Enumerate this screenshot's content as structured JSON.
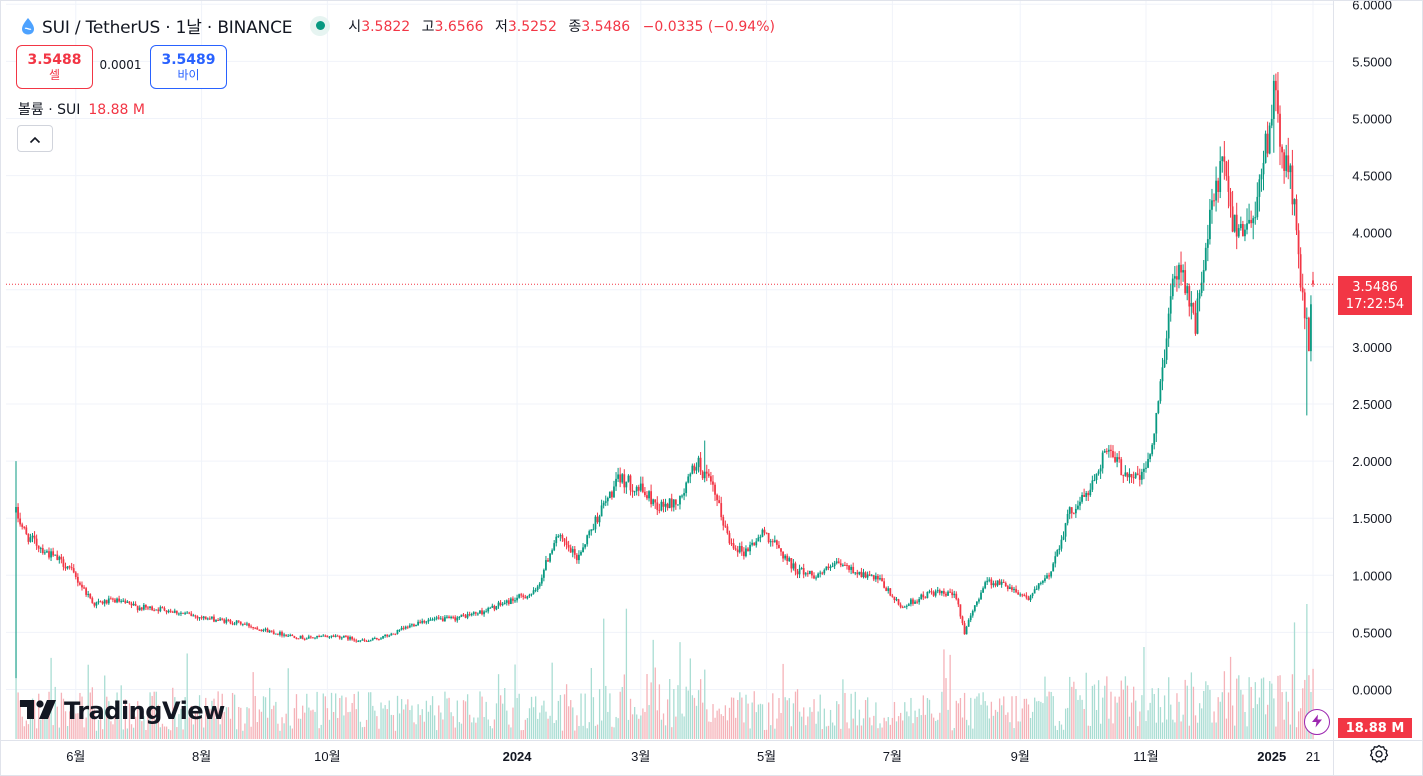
{
  "legend": {
    "title": "SUI / TetherUS · 1날 · BINANCE",
    "o_label": "시",
    "o_value": "3.5822",
    "h_label": "고",
    "h_value": "3.6566",
    "l_label": "저",
    "l_value": "3.5252",
    "c_label": "종",
    "c_value": "3.5486",
    "change": "−0.0335 (−0.94%)"
  },
  "trade": {
    "sell_price": "3.5488",
    "sell_label": "셀",
    "spread": "0.0001",
    "buy_price": "3.5489",
    "buy_label": "바이"
  },
  "volume_legend": {
    "label": "볼륨 · SUI",
    "value": "18.88 M"
  },
  "watermark": "TradingView",
  "last_price": {
    "price": "3.5486",
    "countdown": "17:22:54"
  },
  "volume_badge": "18.88 M",
  "icons": {
    "symbol": "sui-logo-icon",
    "collapse": "chevron-up-icon",
    "bolt": "lightning-icon",
    "settings": "gear-icon"
  },
  "colors": {
    "up": "#089981",
    "down": "#f23645",
    "up_volume": "#a9ddd3",
    "down_volume": "#f5b2b8",
    "grid": "#f0f3fa"
  },
  "chart_data": {
    "type": "candlestick",
    "symbol": "SUI / TetherUS",
    "interval": "1날",
    "exchange": "BINANCE",
    "y_axis": {
      "ticks": [
        0,
        0.5,
        1,
        1.5,
        2,
        2.5,
        3,
        3.5,
        4,
        4.5,
        5,
        5.5,
        6
      ],
      "tick_labels": [
        "0.0000",
        "0.5000",
        "1.0000",
        "1.5000",
        "2.0000",
        "2.5000",
        "3.0000",
        "3.5000",
        "4.0000",
        "4.5000",
        "5.0000",
        "5.5000",
        "6.0000"
      ],
      "range": [
        0,
        6
      ]
    },
    "x_axis": {
      "start": "2023-05-03",
      "end": "2025-01-21",
      "ticks": [
        {
          "label": "6월",
          "date": "2023-06-01",
          "bold": false
        },
        {
          "label": "8월",
          "date": "2023-08-01",
          "bold": false
        },
        {
          "label": "10월",
          "date": "2023-10-01",
          "bold": false
        },
        {
          "label": "2024",
          "date": "2024-01-01",
          "bold": true
        },
        {
          "label": "3월",
          "date": "2024-03-01",
          "bold": false
        },
        {
          "label": "5월",
          "date": "2024-05-01",
          "bold": false
        },
        {
          "label": "7월",
          "date": "2024-07-01",
          "bold": false
        },
        {
          "label": "9월",
          "date": "2024-09-01",
          "bold": false
        },
        {
          "label": "11월",
          "date": "2024-11-01",
          "bold": false
        },
        {
          "label": "2025",
          "date": "2025-01-01",
          "bold": true
        },
        {
          "label": "21",
          "date": "2025-01-21",
          "bold": false
        }
      ]
    },
    "last_price": 3.5486,
    "close_path": [
      [
        "2023-05-03",
        1.55
      ],
      [
        "2023-05-08",
        1.35
      ],
      [
        "2023-05-18",
        1.2
      ],
      [
        "2023-05-28",
        1.08
      ],
      [
        "2023-06-10",
        0.75
      ],
      [
        "2023-06-20",
        0.78
      ],
      [
        "2023-07-01",
        0.72
      ],
      [
        "2023-07-15",
        0.7
      ],
      [
        "2023-08-01",
        0.63
      ],
      [
        "2023-08-20",
        0.58
      ],
      [
        "2023-09-05",
        0.5
      ],
      [
        "2023-09-20",
        0.45
      ],
      [
        "2023-10-05",
        0.47
      ],
      [
        "2023-10-20",
        0.42
      ],
      [
        "2023-11-01",
        0.48
      ],
      [
        "2023-11-15",
        0.6
      ],
      [
        "2023-12-01",
        0.62
      ],
      [
        "2023-12-15",
        0.68
      ],
      [
        "2024-01-01",
        0.8
      ],
      [
        "2024-01-10",
        0.85
      ],
      [
        "2024-01-20",
        1.35
      ],
      [
        "2024-01-30",
        1.15
      ],
      [
        "2024-02-10",
        1.55
      ],
      [
        "2024-02-20",
        1.85
      ],
      [
        "2024-03-01",
        1.75
      ],
      [
        "2024-03-10",
        1.6
      ],
      [
        "2024-03-20",
        1.65
      ],
      [
        "2024-03-28",
        2.0
      ],
      [
        "2024-04-05",
        1.75
      ],
      [
        "2024-04-13",
        1.3
      ],
      [
        "2024-04-20",
        1.2
      ],
      [
        "2024-04-30",
        1.38
      ],
      [
        "2024-05-15",
        1.05
      ],
      [
        "2024-05-25",
        1.0
      ],
      [
        "2024-06-05",
        1.1
      ],
      [
        "2024-06-15",
        1.02
      ],
      [
        "2024-06-25",
        0.95
      ],
      [
        "2024-07-05",
        0.72
      ],
      [
        "2024-07-20",
        0.85
      ],
      [
        "2024-08-01",
        0.82
      ],
      [
        "2024-08-05",
        0.5
      ],
      [
        "2024-08-15",
        0.95
      ],
      [
        "2024-08-25",
        0.92
      ],
      [
        "2024-09-05",
        0.8
      ],
      [
        "2024-09-15",
        1.0
      ],
      [
        "2024-09-25",
        1.55
      ],
      [
        "2024-10-05",
        1.75
      ],
      [
        "2024-10-12",
        2.1
      ],
      [
        "2024-10-22",
        1.9
      ],
      [
        "2024-10-30",
        1.85
      ],
      [
        "2024-11-05",
        2.2
      ],
      [
        "2024-11-12",
        3.3
      ],
      [
        "2024-11-17",
        3.8
      ],
      [
        "2024-11-25",
        3.2
      ],
      [
        "2024-12-03",
        4.2
      ],
      [
        "2024-12-08",
        4.6
      ],
      [
        "2024-12-13",
        4.1
      ],
      [
        "2024-12-20",
        4.05
      ],
      [
        "2024-12-25",
        4.3
      ],
      [
        "2025-01-02",
        5.2
      ],
      [
        "2025-01-06",
        4.7
      ],
      [
        "2025-01-10",
        4.5
      ],
      [
        "2025-01-14",
        3.8
      ],
      [
        "2025-01-17",
        3.3
      ],
      [
        "2025-01-19",
        3.0
      ],
      [
        "2025-01-21",
        3.55
      ]
    ],
    "highlights": [
      {
        "date": "2023-05-03",
        "high": 2.0,
        "low": 0.1
      },
      {
        "date": "2024-04-01",
        "high": 2.18,
        "low": 1.85
      },
      {
        "date": "2025-01-02",
        "high": 5.35,
        "low": 4.7
      },
      {
        "date": "2025-01-18",
        "high": 3.25,
        "low": 2.4
      }
    ]
  }
}
